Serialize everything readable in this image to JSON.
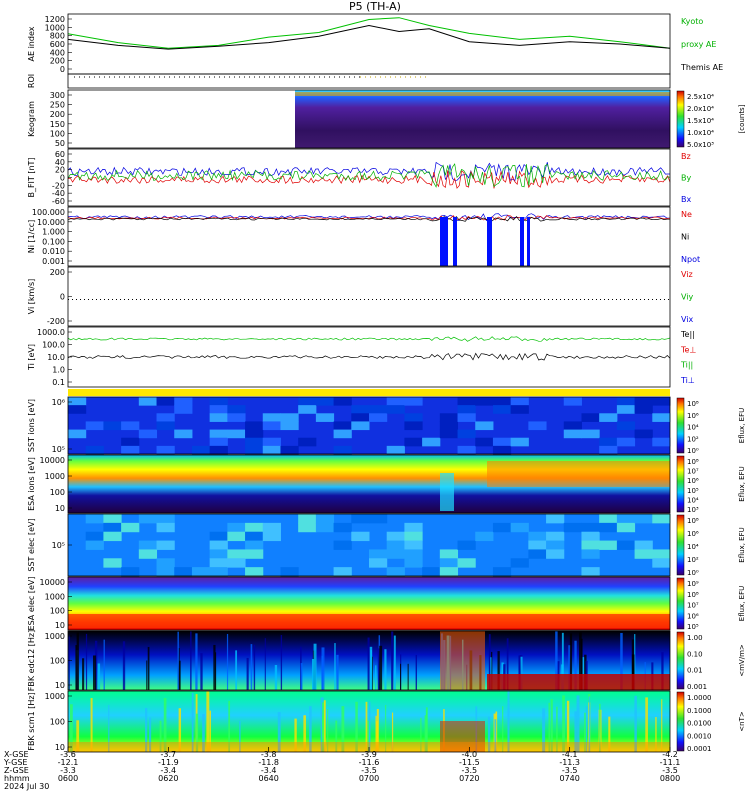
{
  "chart_data": {
    "type": "line",
    "title": "P5 (TH-A)",
    "panels": [
      {
        "id": "ae",
        "ylabel": "AE index",
        "ylim": [
          0,
          1300
        ],
        "yticks": [
          "1200",
          "1000",
          "800",
          "600",
          "400",
          "200",
          "0"
        ],
        "legend": [
          {
            "text": "Kyoto",
            "color": "#00b000"
          },
          {
            "text": "proxy AE",
            "color": "#00b000"
          },
          {
            "text": "Themis AE",
            "color": "#000000"
          }
        ],
        "series": [
          {
            "name": "Kyoto proxy AE",
            "color": "#00c000",
            "x": [
              3.6,
              3.65,
              3.7,
              3.75,
              3.8,
              3.85,
              3.9,
              3.93,
              3.96,
              4.0,
              4.05,
              4.1,
              4.15,
              4.2
            ],
            "values": [
              870,
              680,
              560,
              620,
              800,
              900,
              1180,
              1220,
              1050,
              880,
              750,
              820,
              700,
              560
            ]
          },
          {
            "name": "Themis AE",
            "color": "#000000",
            "x": [
              3.6,
              3.65,
              3.7,
              3.75,
              3.8,
              3.85,
              3.9,
              3.93,
              3.96,
              4.0,
              4.05,
              4.1,
              4.15,
              4.2
            ],
            "values": [
              750,
              620,
              540,
              600,
              680,
              820,
              1050,
              920,
              980,
              700,
              620,
              700,
              650,
              560
            ]
          }
        ]
      },
      {
        "id": "roi",
        "ylabel": "ROI",
        "yticks": []
      },
      {
        "id": "keogram",
        "ylabel": "Keogram",
        "yticks": [
          "300",
          "250",
          "200",
          "150",
          "100",
          "50"
        ],
        "colorbar": {
          "labels": [
            "2.5x10⁴",
            "2.0x10⁴",
            "1.5x10⁴",
            "1.0x10⁴",
            "5.0x10³"
          ],
          "unit": "[counts]"
        }
      },
      {
        "id": "bfit",
        "ylabel": "B_FIT [nT]",
        "yticks": [
          "60",
          "40",
          "20",
          "0",
          "-20",
          "-40",
          "-60"
        ],
        "legend": [
          {
            "text": "Bz",
            "color": "#e00000"
          },
          {
            "text": "By",
            "color": "#00b000"
          },
          {
            "text": "Bx",
            "color": "#0000e0"
          }
        ]
      },
      {
        "id": "ni",
        "ylabel": "Ni [1/cc]",
        "yticks": [
          "100.000",
          "10.000",
          "1.000",
          "0.100",
          "0.010",
          "0.001"
        ],
        "legend": [
          {
            "text": "Ne",
            "color": "#e00000"
          },
          {
            "text": "Ni",
            "color": "#000000"
          },
          {
            "text": "Npot",
            "color": "#0000e0"
          }
        ]
      },
      {
        "id": "vi",
        "ylabel": "Vi [km/s]",
        "yticks": [
          "200",
          "0",
          "-200"
        ],
        "legend": [
          {
            "text": "Viz",
            "color": "#e00000"
          },
          {
            "text": "Viy",
            "color": "#00b000"
          },
          {
            "text": "Vix",
            "color": "#0000e0"
          }
        ]
      },
      {
        "id": "ti",
        "ylabel": "Ti [eV]",
        "yticks": [
          "1000.0",
          "100.0",
          "10.0",
          "1.0",
          "0.1"
        ],
        "legend": [
          {
            "text": "Te||",
            "color": "#000000"
          },
          {
            "text": "Te⊥",
            "color": "#e00000"
          },
          {
            "text": "Ti||",
            "color": "#00b000"
          },
          {
            "text": "Ti⊥",
            "color": "#0000e0"
          }
        ]
      },
      {
        "id": "sst_i",
        "ylabel": "SST ions [eV]",
        "yticks": [
          "10⁶",
          "10⁵"
        ],
        "colorbar": {
          "labels": [
            "10⁸",
            "10⁶",
            "10⁴",
            "10²",
            "10⁰"
          ],
          "unit": "Eflux, EFU"
        }
      },
      {
        "id": "esa_i",
        "ylabel": "ESA ions [eV]",
        "yticks": [
          "10000",
          "1000",
          "100",
          "10"
        ],
        "colorbar": {
          "labels": [
            "10⁸",
            "10⁷",
            "10⁶",
            "10⁵",
            "10⁴",
            "10³"
          ],
          "unit": "Eflux, EFU"
        }
      },
      {
        "id": "sst_e",
        "ylabel": "SST elec [eV]",
        "yticks": [
          "10⁵"
        ],
        "colorbar": {
          "labels": [
            "10⁸",
            "10⁶",
            "10⁴",
            "10²",
            "10⁰"
          ],
          "unit": "Eflux, EFU"
        }
      },
      {
        "id": "esa_e",
        "ylabel": "ESA elec [eV]",
        "yticks": [
          "10000",
          "1000",
          "100",
          "10"
        ],
        "colorbar": {
          "labels": [
            "10⁹",
            "10⁸",
            "10⁷",
            "10⁶",
            "10⁵"
          ],
          "unit": "Eflux, EFU"
        }
      },
      {
        "id": "fbk_e",
        "ylabel": "FBK edc12 [Hz]",
        "yticks": [
          "1000",
          "100",
          "10"
        ],
        "colorbar": {
          "labels": [
            "1.00",
            "0.10",
            "0.01",
            "0.001"
          ],
          "unit": "<mV/m>"
        }
      },
      {
        "id": "fbk_b",
        "ylabel": "FBK scm1 [Hz]",
        "yticks": [
          "1000",
          "100",
          "10"
        ],
        "colorbar": {
          "labels": [
            "1.0000",
            "0.1000",
            "0.0100",
            "0.0010",
            "0.0001"
          ],
          "unit": "<nT>"
        }
      }
    ],
    "x_axis": {
      "row_labels": [
        "X-GSE",
        "Y-GSE",
        "Z-GSE",
        "hhmm",
        "2024 Jul 30"
      ],
      "ticks": [
        {
          "x": "-3.6",
          "y": "-12.1",
          "z": "-3.3",
          "t": "0600"
        },
        {
          "x": "-3.7",
          "y": "-11.9",
          "z": "-3.4",
          "t": "0620"
        },
        {
          "x": "-3.8",
          "y": "-11.8",
          "z": "-3.4",
          "t": "0640"
        },
        {
          "x": "-3.9",
          "y": "-11.6",
          "z": "-3.5",
          "t": "0700"
        },
        {
          "x": "-4.0",
          "y": "-11.5",
          "z": "-3.5",
          "t": "0720"
        },
        {
          "x": "-4.1",
          "y": "-11.3",
          "z": "-3.5",
          "t": "0740"
        },
        {
          "x": "-4.2",
          "y": "-11.1",
          "z": "-3.5",
          "t": "0800"
        }
      ]
    }
  }
}
